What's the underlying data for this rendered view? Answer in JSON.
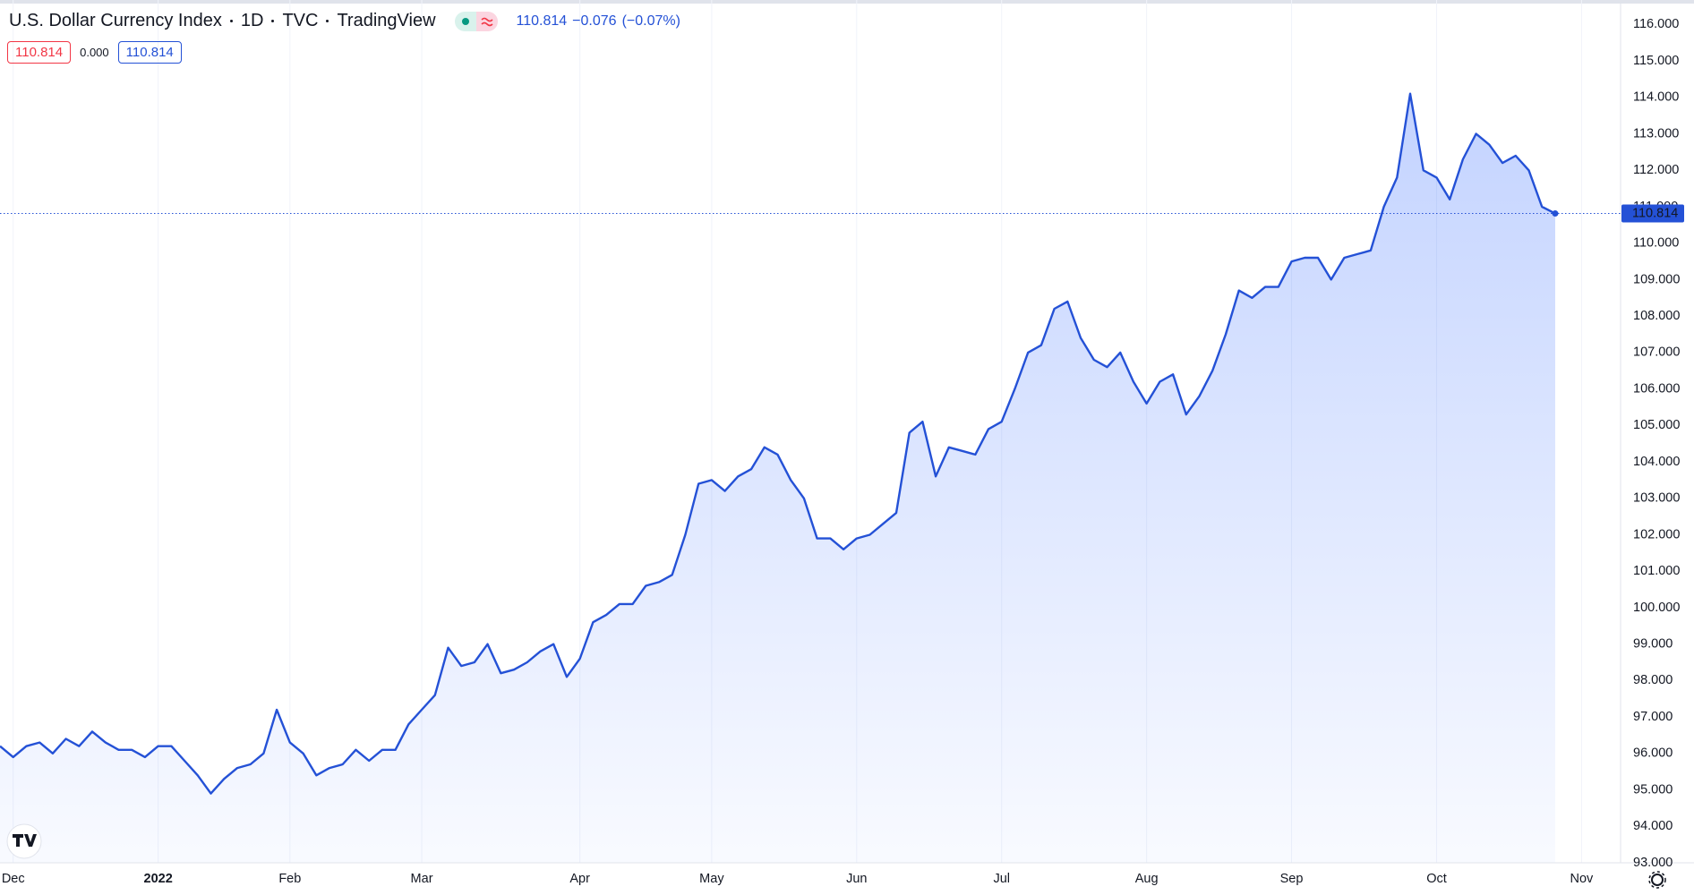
{
  "chart_data": {
    "type": "area",
    "title": "U.S. Dollar Currency Index",
    "interval": "1D",
    "exchange": "TVC",
    "source": "TradingView",
    "change": "−0.076",
    "change_percent": "(−0.07%)",
    "spread": "0.000",
    "color": "#2451d6",
    "grid": true,
    "categories": [
      null,
      "Dec",
      null,
      null,
      null,
      null,
      null,
      null,
      null,
      null,
      null,
      null,
      "2022",
      null,
      null,
      null,
      null,
      null,
      null,
      null,
      null,
      null,
      "Feb",
      null,
      null,
      null,
      null,
      null,
      null,
      null,
      null,
      null,
      "Mar",
      null,
      null,
      null,
      null,
      null,
      null,
      null,
      null,
      null,
      null,
      null,
      "Apr",
      null,
      null,
      null,
      null,
      null,
      null,
      null,
      null,
      null,
      "May",
      null,
      null,
      null,
      null,
      null,
      null,
      null,
      null,
      null,
      null,
      "Jun",
      null,
      null,
      null,
      null,
      null,
      null,
      null,
      null,
      null,
      null,
      "Jul",
      null,
      null,
      null,
      null,
      null,
      null,
      null,
      null,
      null,
      null,
      "Aug",
      null,
      null,
      null,
      null,
      null,
      null,
      null,
      null,
      null,
      null,
      "Sep",
      null,
      null,
      null,
      null,
      null,
      null,
      null,
      null,
      null,
      null,
      "Oct",
      null,
      null,
      null,
      null,
      null,
      null,
      null,
      null,
      null,
      null,
      "Nov"
    ],
    "values": [
      96.2,
      95.9,
      96.2,
      96.3,
      96.0,
      96.4,
      96.2,
      96.6,
      96.3,
      96.1,
      96.1,
      95.9,
      96.2,
      96.2,
      95.8,
      95.4,
      94.9,
      95.3,
      95.6,
      95.7,
      96.0,
      97.2,
      96.3,
      96.0,
      95.4,
      95.6,
      95.7,
      96.1,
      95.8,
      96.1,
      96.1,
      96.8,
      97.2,
      97.6,
      98.9,
      98.4,
      98.5,
      99.0,
      98.2,
      98.3,
      98.5,
      98.8,
      99.0,
      98.1,
      98.6,
      99.6,
      99.8,
      100.1,
      100.1,
      100.6,
      100.7,
      100.9,
      102.0,
      103.4,
      103.5,
      103.2,
      103.6,
      103.8,
      104.4,
      104.2,
      103.5,
      103.0,
      101.9,
      101.9,
      101.6,
      101.9,
      102.0,
      102.3,
      102.6,
      104.8,
      105.1,
      103.6,
      104.4,
      104.3,
      104.2,
      104.9,
      105.1,
      106.0,
      107.0,
      107.2,
      108.2,
      108.4,
      107.4,
      106.8,
      106.6,
      107.0,
      106.2,
      105.6,
      106.2,
      106.4,
      105.3,
      105.8,
      106.5,
      107.5,
      108.7,
      108.5,
      108.8,
      108.8,
      109.5,
      109.6,
      109.6,
      109.0,
      109.6,
      109.7,
      109.8,
      111.0,
      111.8,
      114.1,
      112.0,
      111.8,
      111.2,
      112.3,
      113.0,
      112.7,
      112.2,
      112.4,
      112.0,
      111.0,
      110.814,
      null,
      null
    ],
    "ylim": [
      93,
      116.5
    ],
    "yticks": [
      {
        "value": 93,
        "label": "93.000"
      },
      {
        "value": 94,
        "label": "94.000"
      },
      {
        "value": 95,
        "label": "95.000"
      },
      {
        "value": 96,
        "label": "96.000"
      },
      {
        "value": 97,
        "label": "97.000"
      },
      {
        "value": 98,
        "label": "98.000"
      },
      {
        "value": 99,
        "label": "99.000"
      },
      {
        "value": 100,
        "label": "100.000"
      },
      {
        "value": 101,
        "label": "101.000"
      },
      {
        "value": 102,
        "label": "102.000"
      },
      {
        "value": 103,
        "label": "103.000"
      },
      {
        "value": 104,
        "label": "104.000"
      },
      {
        "value": 105,
        "label": "105.000"
      },
      {
        "value": 106,
        "label": "106.000"
      },
      {
        "value": 107,
        "label": "107.000"
      },
      {
        "value": 108,
        "label": "108.000"
      },
      {
        "value": 109,
        "label": "109.000"
      },
      {
        "value": 110,
        "label": "110.000"
      },
      {
        "value": 111,
        "label": "111.000"
      },
      {
        "value": 112,
        "label": "112.000"
      },
      {
        "value": 113,
        "label": "113.000"
      },
      {
        "value": 114,
        "label": "114.000"
      },
      {
        "value": 115,
        "label": "115.000"
      },
      {
        "value": 116,
        "label": "116.000"
      }
    ]
  }
}
